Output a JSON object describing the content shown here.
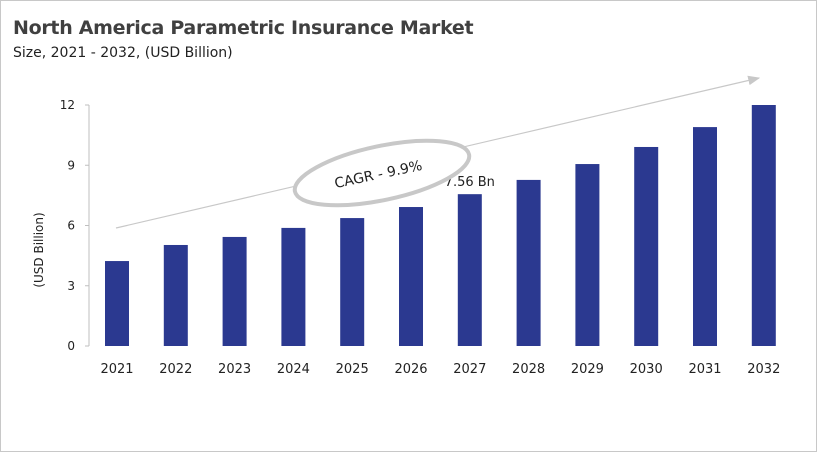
{
  "chart_data": {
    "type": "bar",
    "title": "North America Parametric Insurance Market",
    "subtitle": "Size, 2021 - 2032, (USD Billion)",
    "ylabel": "(USD Billion)",
    "xlabel": "",
    "categories": [
      "2021",
      "2022",
      "2023",
      "2024",
      "2025",
      "2026",
      "2027",
      "2028",
      "2029",
      "2030",
      "2031",
      "2032"
    ],
    "values": [
      4.23,
      5.03,
      5.43,
      5.88,
      6.37,
      6.92,
      7.56,
      8.27,
      9.06,
      9.91,
      10.9,
      12.0
    ],
    "ylim": [
      0,
      12
    ],
    "yticks": [
      "0",
      "3",
      "6",
      "9",
      "12"
    ],
    "grid": false,
    "bar_color": "#2B3990",
    "annotations": {
      "data_label": {
        "category": "2027",
        "text": "7.56 Bn"
      },
      "cagr": "CAGR - 9.9%"
    }
  }
}
